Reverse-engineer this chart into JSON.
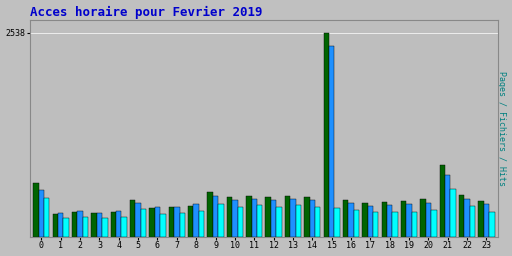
{
  "title": "Acces horaire pour Fevrier 2019",
  "ylabel": "Pages / Fichiers / Hits",
  "hours": [
    0,
    1,
    2,
    3,
    4,
    5,
    6,
    7,
    8,
    9,
    10,
    11,
    12,
    13,
    14,
    15,
    16,
    17,
    18,
    19,
    20,
    21,
    22,
    23
  ],
  "pages": [
    680,
    295,
    320,
    300,
    315,
    460,
    360,
    370,
    390,
    560,
    500,
    510,
    505,
    515,
    505,
    2538,
    460,
    420,
    435,
    450,
    470,
    900,
    530,
    455
  ],
  "fichiers": [
    590,
    300,
    330,
    305,
    325,
    420,
    370,
    375,
    410,
    510,
    460,
    470,
    460,
    470,
    460,
    2370,
    430,
    390,
    400,
    410,
    430,
    770,
    480,
    415
  ],
  "hits": [
    490,
    240,
    255,
    240,
    255,
    350,
    295,
    300,
    330,
    410,
    380,
    395,
    375,
    395,
    380,
    365,
    340,
    310,
    315,
    320,
    340,
    600,
    385,
    320
  ],
  "color_pages": "#006400",
  "color_fichiers": "#1E90FF",
  "color_hits": "#00FFFF",
  "bg_color": "#C0C0C0",
  "plot_bg": "#BEBEBE",
  "title_color": "#0000CC",
  "ylabel_color": "#008080",
  "ylabel_size": 6,
  "title_size": 9,
  "tick_label_size": 6,
  "ylim_max": 2700,
  "ytick_val": 2538
}
